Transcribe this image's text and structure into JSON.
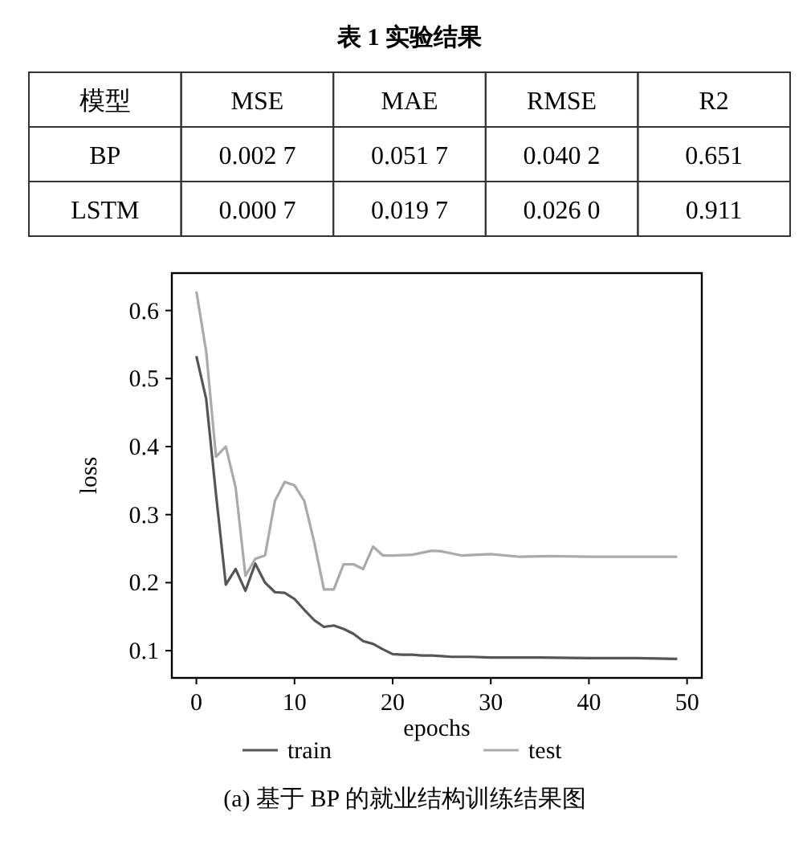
{
  "chart_data": [
    {
      "type": "other",
      "title": "表 1 实验结果",
      "annotations": [
        "模型"
      ],
      "categories": [
        "MSE",
        "MAE",
        "RMSE",
        "R2"
      ],
      "y_categories": [
        "BP",
        "LSTM"
      ],
      "cell_labels": [
        [
          "0.002 7",
          "0.051 7",
          "0.040 2",
          "0.651"
        ],
        [
          "0.000 7",
          "0.019 7",
          "0.026 0",
          "0.911"
        ]
      ]
    },
    {
      "type": "line",
      "xlabel": "epochs",
      "ylabel": "loss",
      "xlim": [
        -2.5,
        51.5
      ],
      "xticks": [
        0,
        10,
        20,
        30,
        40,
        50
      ],
      "ylim": [
        0.06,
        0.655
      ],
      "yticks": [
        0.1,
        0.2,
        0.3,
        0.4,
        0.5,
        0.6
      ],
      "legend": "bottom",
      "annotations": [
        "(a) 基于 BP 的就业结构训练结果图"
      ],
      "series": [
        {
          "name": "train",
          "color": "#555555",
          "x": [
            0,
            1,
            2,
            3,
            4,
            5,
            6,
            7,
            8,
            9,
            10,
            11,
            12,
            13,
            14,
            15,
            16,
            17,
            18,
            19,
            20,
            21,
            22,
            23,
            24,
            25,
            26,
            28,
            30,
            35,
            40,
            45,
            49
          ],
          "values": [
            0.533,
            0.47,
            0.33,
            0.197,
            0.22,
            0.188,
            0.228,
            0.2,
            0.186,
            0.185,
            0.176,
            0.16,
            0.145,
            0.135,
            0.137,
            0.132,
            0.125,
            0.114,
            0.11,
            0.102,
            0.095,
            0.094,
            0.094,
            0.093,
            0.093,
            0.092,
            0.091,
            0.091,
            0.09,
            0.09,
            0.089,
            0.089,
            0.088
          ]
        },
        {
          "name": "test",
          "color": "#aaaaaa",
          "x": [
            0,
            1,
            2,
            3,
            4,
            5,
            6,
            7,
            8,
            9,
            10,
            11,
            12,
            13,
            14,
            15,
            16,
            17,
            18,
            19,
            20,
            22,
            24,
            25,
            27,
            30,
            33,
            36,
            40,
            45,
            49
          ],
          "values": [
            0.628,
            0.54,
            0.385,
            0.4,
            0.34,
            0.21,
            0.235,
            0.24,
            0.32,
            0.348,
            0.343,
            0.32,
            0.26,
            0.19,
            0.19,
            0.227,
            0.227,
            0.22,
            0.253,
            0.24,
            0.24,
            0.241,
            0.247,
            0.246,
            0.24,
            0.242,
            0.238,
            0.239,
            0.238,
            0.238,
            0.238
          ]
        }
      ]
    }
  ]
}
